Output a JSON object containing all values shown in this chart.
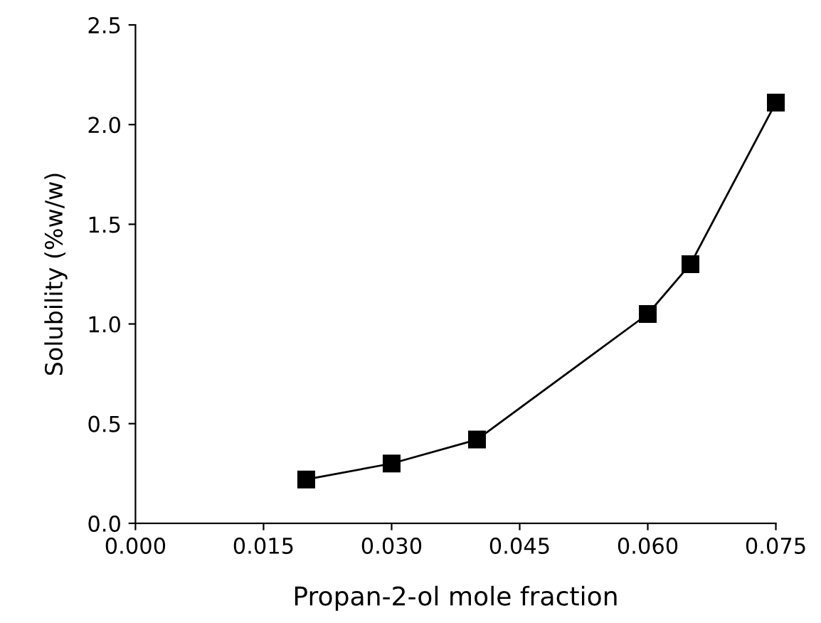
{
  "chart_data": {
    "type": "line",
    "xlabel": "Propan-2-ol mole fraction",
    "ylabel": "Solubility (%w/w)",
    "x": [
      0.02,
      0.03,
      0.04,
      0.06,
      0.065,
      0.075
    ],
    "series": [
      {
        "color": "#000000",
        "values": [
          0.22,
          0.3,
          0.42,
          1.05,
          1.3,
          2.11
        ]
      }
    ],
    "marker": "square",
    "line_style": "solid",
    "grid": false,
    "legend": false,
    "xlim": [
      0.0,
      0.075
    ],
    "ylim": [
      0.0,
      2.5
    ],
    "xticks": [
      {
        "value": 0.0,
        "label": "0.000"
      },
      {
        "value": 0.015,
        "label": "0.015"
      },
      {
        "value": 0.03,
        "label": "0.030"
      },
      {
        "value": 0.045,
        "label": "0.045"
      },
      {
        "value": 0.06,
        "label": "0.060"
      },
      {
        "value": 0.075,
        "label": "0.075"
      }
    ],
    "yticks": [
      {
        "value": 0.0,
        "label": "0.0"
      },
      {
        "value": 0.5,
        "label": "0.5"
      },
      {
        "value": 1.0,
        "label": "1.0"
      },
      {
        "value": 1.5,
        "label": "1.5"
      },
      {
        "value": 2.0,
        "label": "2.0"
      },
      {
        "value": 2.5,
        "label": "2.5"
      }
    ]
  }
}
